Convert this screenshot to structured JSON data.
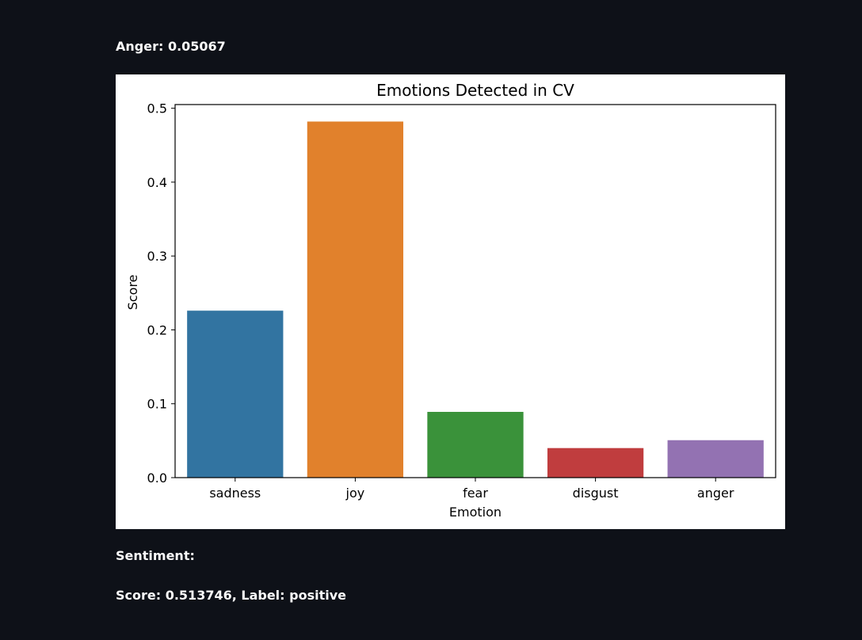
{
  "top_text": "Anger: 0.05067",
  "sentiment_heading": "Sentiment:",
  "sentiment_detail": "Score: 0.513746, Label: positive",
  "chart_data": {
    "type": "bar",
    "title": "Emotions Detected in CV",
    "xlabel": "Emotion",
    "ylabel": "Score",
    "categories": [
      "sadness",
      "joy",
      "fear",
      "disgust",
      "anger"
    ],
    "values": [
      0.226,
      0.482,
      0.089,
      0.04,
      0.05067
    ],
    "colors": [
      "#3274a1",
      "#e1812c",
      "#3a923a",
      "#c03d3e",
      "#9372b2"
    ],
    "ylim": [
      0,
      0.505
    ],
    "yticks": [
      0.0,
      0.1,
      0.2,
      0.3,
      0.4,
      0.5
    ],
    "ytick_labels": [
      "0.0",
      "0.1",
      "0.2",
      "0.3",
      "0.4",
      "0.5"
    ],
    "grid": false,
    "legend": "none"
  }
}
